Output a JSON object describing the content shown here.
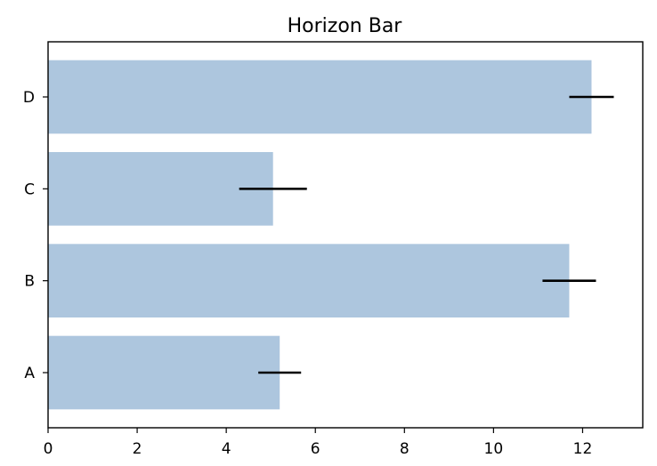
{
  "chart_data": {
    "type": "bar",
    "orientation": "horizontal",
    "title": "Horizon Bar",
    "xlabel": "",
    "ylabel": "",
    "categories": [
      "A",
      "B",
      "C",
      "D"
    ],
    "values": [
      5.2,
      11.7,
      5.05,
      12.2
    ],
    "errors": [
      0.48,
      0.6,
      0.76,
      0.5
    ],
    "xlim": [
      0,
      13.35
    ],
    "xticks": [
      0,
      2,
      4,
      6,
      8,
      10,
      12
    ],
    "grid": false,
    "bar_color": "#adc6de",
    "error_color": "#000000"
  }
}
